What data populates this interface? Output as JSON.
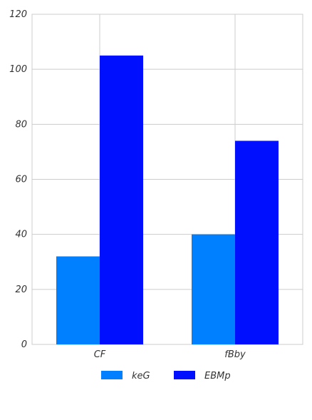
{
  "chart_data": {
    "type": "bar",
    "categories": [
      "CF",
      "fBby"
    ],
    "series": [
      {
        "name": "keG",
        "values": [
          32,
          40
        ],
        "color": "#0080FF"
      },
      {
        "name": "EBMp",
        "values": [
          105,
          74
        ],
        "color": "#0010FF"
      }
    ],
    "ylim": [
      0,
      120
    ],
    "yticks": [
      0,
      20,
      40,
      60,
      80,
      100,
      120
    ],
    "grid": true,
    "legend_position": "bottom-center"
  }
}
